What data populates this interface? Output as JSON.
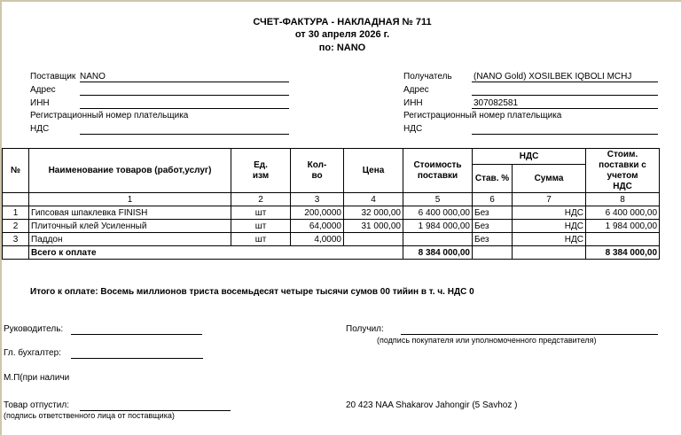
{
  "header": {
    "title": "СЧЕТ-ФАКТУРА - НАКЛАДНАЯ № 711",
    "date": "от 30 апреля 2026 г.",
    "by": "по: NANO"
  },
  "supplier": {
    "label": "Поставщик",
    "value": "NANO",
    "address_label": "Адрес",
    "inn_label": "ИНН",
    "reg_label": "Регистрационный номер плательщика",
    "nds_label": "НДС"
  },
  "recipient": {
    "label": "Получатель",
    "value": "(NANO Gold) XOSILBEK IQBOLI MCHJ",
    "address_label": "Адрес",
    "inn_label": "ИНН",
    "inn": "307082581",
    "reg_label": "Регистрационный номер плательщика",
    "nds_label": "НДС"
  },
  "table": {
    "headers": {
      "num": "№",
      "name": "Наименование товаров (работ,услуг)",
      "unit": "Ед. изм",
      "qty": "Кол-во",
      "price": "Цена",
      "cost": "Стоимость поставки",
      "nds": "НДС",
      "rate": "Став. %",
      "sum": "Сумма",
      "total": "Стоим. поставки с учетом НДС"
    },
    "col_numbers": [
      "1",
      "2",
      "3",
      "4",
      "5",
      "6",
      "7",
      "8"
    ],
    "rows": [
      {
        "num": "1",
        "name": "Гипсовая шпаклевка FINISH",
        "unit": "шт",
        "qty": "200,0000",
        "price": "32 000,00",
        "cost": "6 400 000,00",
        "rate": "Без",
        "sum": "НДС",
        "total": "6 400 000,00"
      },
      {
        "num": "2",
        "name": "Плиточный клей Усиленный",
        "unit": "шт",
        "qty": "64,0000",
        "price": "31 000,00",
        "cost": "1 984 000,00",
        "rate": "Без",
        "sum": "НДС",
        "total": "1 984 000,00"
      },
      {
        "num": "3",
        "name": "Паддон",
        "unit": "шт",
        "qty": "4,0000",
        "price": "",
        "cost": "",
        "rate": "Без",
        "sum": "НДС",
        "total": ""
      }
    ],
    "total_label": "Всего к оплате",
    "total_cost": "8 384 000,00",
    "total_with_nds": "8 384 000,00"
  },
  "summary": "Итого к оплате: Восемь миллионов триста восемьдесят четыре тысячи сумов 00 тийин  в т. ч. НДС 0",
  "signatures": {
    "director": "Руководитель:",
    "accountant": "Гл. бухгалтер:",
    "stamp": "М.П(при наличи",
    "released": "Товар  отпустил:",
    "released_note": "(подпись ответственного лица от поставщика)",
    "received": "Получил:",
    "received_note": "(подпись покупателя или уполномоченного представителя)",
    "agent": "20 423 NAA Shakarov Jahongir (5 Savhoz )"
  }
}
